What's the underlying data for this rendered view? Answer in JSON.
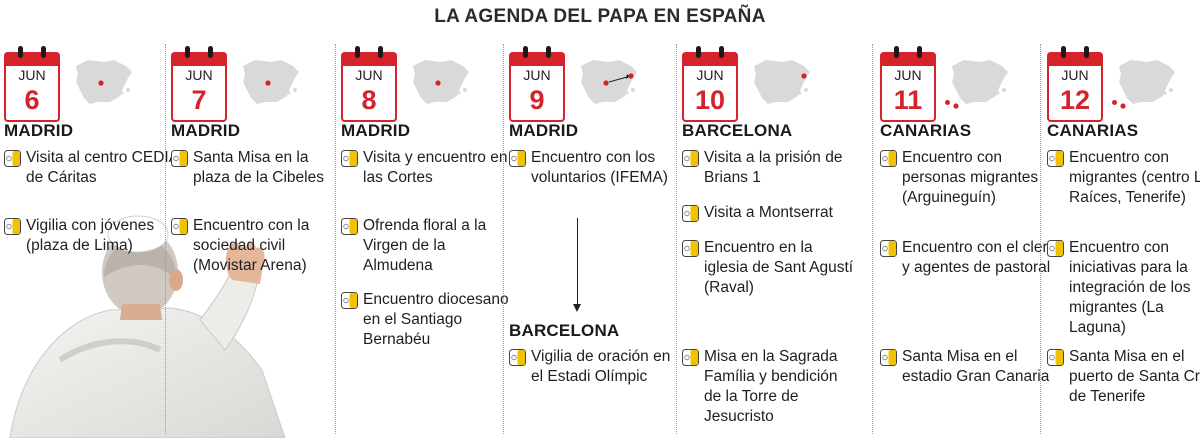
{
  "title": "LA AGENDA DEL PAPA EN ESPAÑA",
  "colors": {
    "accent_red": "#d6222a",
    "icon_yellow": "#f2c200",
    "map_grey": "#d9d9d9"
  },
  "icons": {
    "calendar": "calendar-icon",
    "event": "vatican-flag-icon",
    "map": "spain-map-icon"
  },
  "days": [
    {
      "month": "JUN",
      "day": "6",
      "city": "MADRID",
      "events": [
        "Visita al centro CEDIA de Cáritas",
        "Vigilia con jóvenes (plaza de Lima)"
      ]
    },
    {
      "month": "JUN",
      "day": "7",
      "city": "MADRID",
      "events": [
        "Santa Misa en la plaza de la Cibeles",
        "Encuentro con la sociedad civil (Movistar Arena)"
      ]
    },
    {
      "month": "JUN",
      "day": "8",
      "city": "MADRID",
      "events": [
        "Visita y encuentro en las Cortes",
        "Ofrenda floral a la Virgen de la Almudena",
        "Encuentro diocesano en el Santiago Bernabéu"
      ]
    },
    {
      "month": "JUN",
      "day": "9",
      "city": "MADRID",
      "events": [
        "Encuentro con los voluntarios (IFEMA)"
      ],
      "second_city": "BARCELONA",
      "second_events": [
        "Vigilia de oración en el Estadi Olímpic"
      ]
    },
    {
      "month": "JUN",
      "day": "10",
      "city": "BARCELONA",
      "events": [
        "Visita a la prisión de Brians 1",
        "Visita a Montserrat",
        "Encuentro en la iglesia de Sant Agustí (Raval)",
        "Misa en la Sagrada Família y bendición de la Torre de Jesucristo"
      ]
    },
    {
      "month": "JUN",
      "day": "11",
      "city": "CANARIAS",
      "events": [
        "Encuentro con personas migrantes (Arguineguín)",
        "Encuentro con el clero y agentes de pastoral",
        "Santa Misa en el estadio Gran Canaria"
      ]
    },
    {
      "month": "JUN",
      "day": "12",
      "city": "CANARIAS",
      "events": [
        "Encuentro con migrantes (centro Las Raíces, Tenerife)",
        "Encuentro con iniciativas para la integración de los migrantes (La Laguna)",
        "Santa Misa en el puerto de Santa Cruz de Tenerife"
      ]
    }
  ]
}
